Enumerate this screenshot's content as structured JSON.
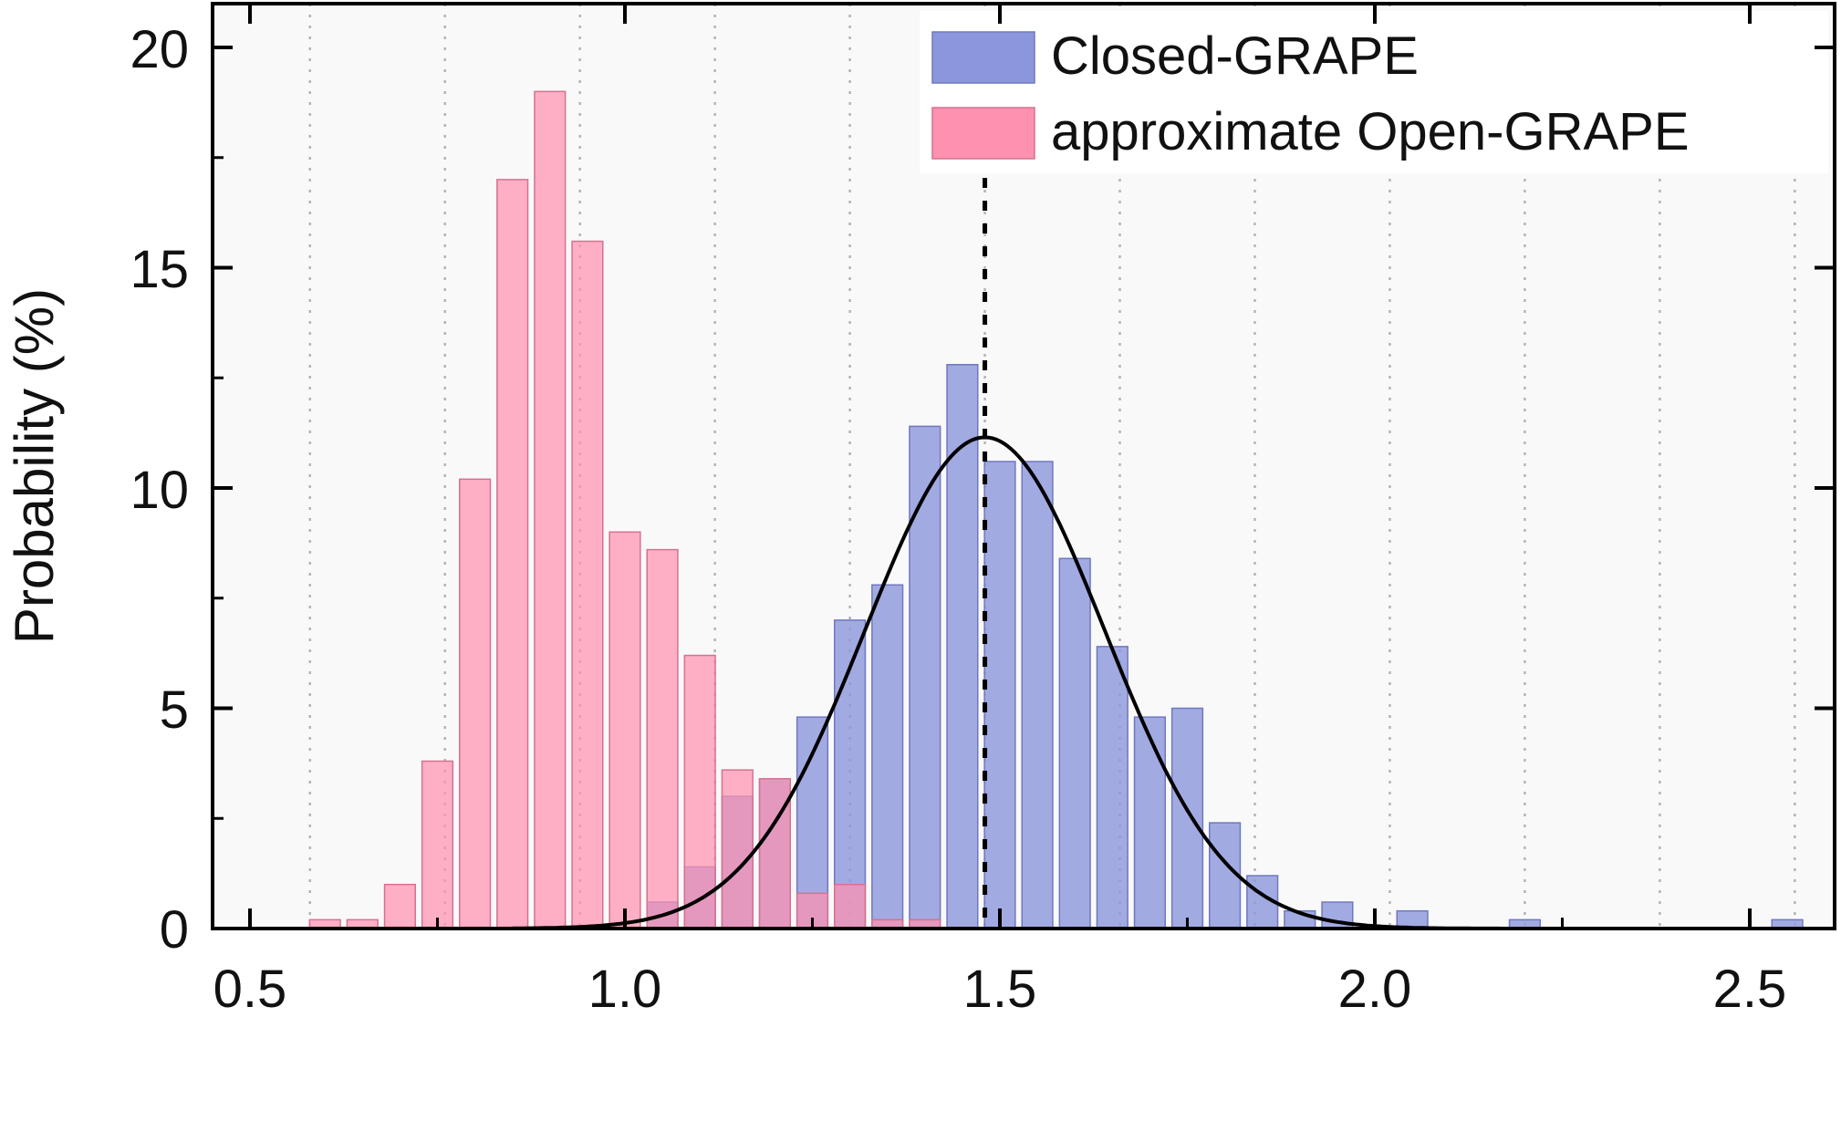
{
  "chart_data": {
    "type": "bar",
    "title": "",
    "xlabel": "",
    "ylabel": "Probability (%)",
    "xlim": [
      0.44,
      2.6
    ],
    "ylim": [
      0,
      21
    ],
    "x_ticks": [
      "0.5",
      "1.0",
      "1.5",
      "2.0",
      "2.5"
    ],
    "y_ticks": [
      "0",
      "5",
      "10",
      "15",
      "20"
    ],
    "grid": "vertical dotted",
    "legend_position": "top-right",
    "bin_width": 0.05,
    "colors": {
      "closed": "#8c96dc",
      "open": "#ff91b0",
      "fit": "#000000",
      "background": "#f9f9f9"
    },
    "series": [
      {
        "name": "Closed-GRAPE",
        "x": [
          1.05,
          1.1,
          1.15,
          1.2,
          1.25,
          1.3,
          1.35,
          1.4,
          1.45,
          1.5,
          1.55,
          1.6,
          1.65,
          1.7,
          1.75,
          1.8,
          1.85,
          1.9,
          1.95,
          2.0,
          2.05,
          2.1,
          2.15,
          2.2,
          2.25,
          2.3,
          2.35,
          2.4,
          2.45,
          2.5,
          2.55
        ],
        "values": [
          0.6,
          1.4,
          3.0,
          3.4,
          4.8,
          7.0,
          7.8,
          11.4,
          12.8,
          10.6,
          10.6,
          8.4,
          6.4,
          4.8,
          5.0,
          2.4,
          1.2,
          0.4,
          0.6,
          0,
          0.4,
          0,
          0,
          0.2,
          0,
          0,
          0,
          0,
          0,
          0,
          0.2
        ]
      },
      {
        "name": "approximate Open-GRAPE",
        "x": [
          0.6,
          0.65,
          0.7,
          0.75,
          0.8,
          0.85,
          0.9,
          0.95,
          1.0,
          1.05,
          1.1,
          1.15,
          1.2,
          1.25,
          1.3,
          1.35,
          1.4
        ],
        "values": [
          0.2,
          0.2,
          1.0,
          3.8,
          10.2,
          17.0,
          19.0,
          15.6,
          9.0,
          8.6,
          6.2,
          3.6,
          3.4,
          0.8,
          1.0,
          0.2,
          0.2
        ]
      }
    ],
    "fit_curve": {
      "type": "gaussian",
      "mean": 1.48,
      "peak": 11.15,
      "sigma": 0.16
    },
    "mean_line_x": 1.48
  }
}
